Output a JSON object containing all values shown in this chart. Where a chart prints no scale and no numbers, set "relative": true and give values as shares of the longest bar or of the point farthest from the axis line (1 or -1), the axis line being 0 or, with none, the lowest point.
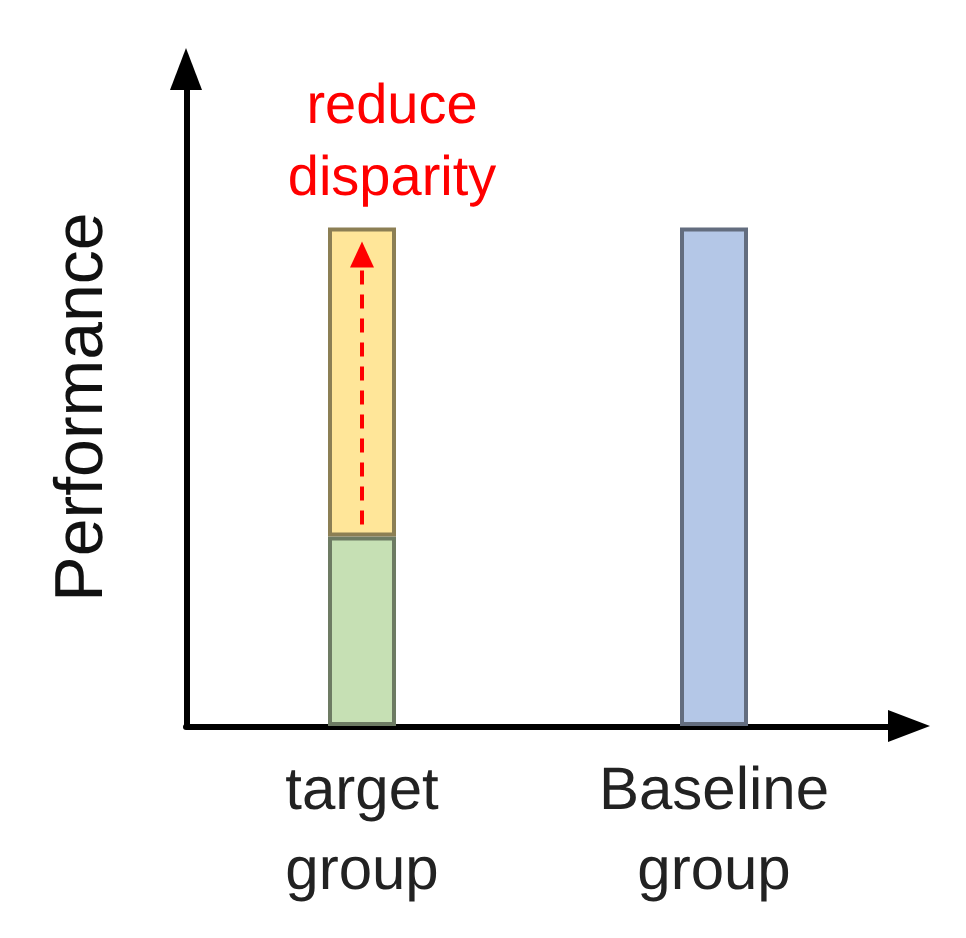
{
  "chart_data": {
    "type": "bar",
    "relative": true,
    "stacked": true,
    "ylabel": "Performance",
    "categories": [
      "target\ngroup",
      "Baseline\ngroup"
    ],
    "series": [
      {
        "colors": [
          "#c6e0b4",
          "#b4c7e7"
        ],
        "values": [
          0.38,
          1
        ]
      },
      {
        "color": "#ffe699",
        "values": [
          0.62,
          null
        ]
      }
    ],
    "annotations": [
      "reduce\ndisparity"
    ],
    "grid": false
  }
}
